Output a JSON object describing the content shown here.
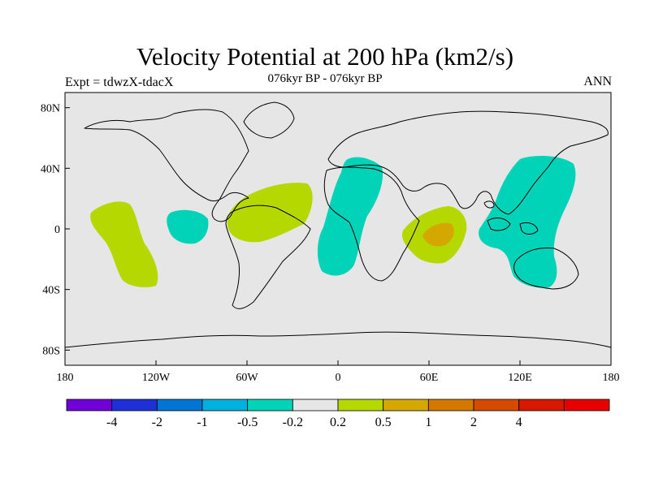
{
  "title": "Velocity Potential at 200 hPa (km2/s)",
  "subtitle": "076kyr BP - 076kyr BP",
  "left_label": "Expt = tdwzX-tdacX",
  "right_label": "ANN",
  "map": {
    "land_fill": "#e6e6e6",
    "coast_color": "#000000",
    "lon_ticks": [
      "180",
      "120W",
      "60W",
      "0",
      "60E",
      "120E",
      "180"
    ],
    "lat_ticks": [
      "80N",
      "40N",
      "0",
      "40S",
      "80S"
    ],
    "lon_range": [
      -180,
      180
    ],
    "lat_range": [
      -90,
      90
    ]
  },
  "colorbar": {
    "colors": [
      "#7000d8",
      "#1f30d8",
      "#0075d3",
      "#00b1e0",
      "#00d3b8",
      "#e6e6e6",
      "#b5d800",
      "#d4a800",
      "#d47800",
      "#d64a00",
      "#d81800",
      "#e80000"
    ],
    "labels": [
      "-4",
      "-2",
      "-1",
      "-0.5",
      "-0.2",
      "0.2",
      "0.5",
      "1",
      "2",
      "4"
    ]
  },
  "anomalies": [
    {
      "name": "pacific-east-positive",
      "level": "0.2 to 0.5",
      "color": "#b5d800"
    },
    {
      "name": "pacific-central-negative",
      "level": "-0.5 to -0.2",
      "color": "#00d3b8"
    },
    {
      "name": "south-america-positive",
      "level": "0.2 to 0.5",
      "color": "#b5d800"
    },
    {
      "name": "atlantic-africa-negative",
      "level": "-0.5 to -0.2",
      "color": "#00d3b8"
    },
    {
      "name": "indian-ocean-positive",
      "level": "0.5 to 1",
      "color": "#d4a800"
    },
    {
      "name": "west-pacific-negative",
      "level": "-0.5 to -0.2",
      "color": "#00d3b8"
    }
  ]
}
